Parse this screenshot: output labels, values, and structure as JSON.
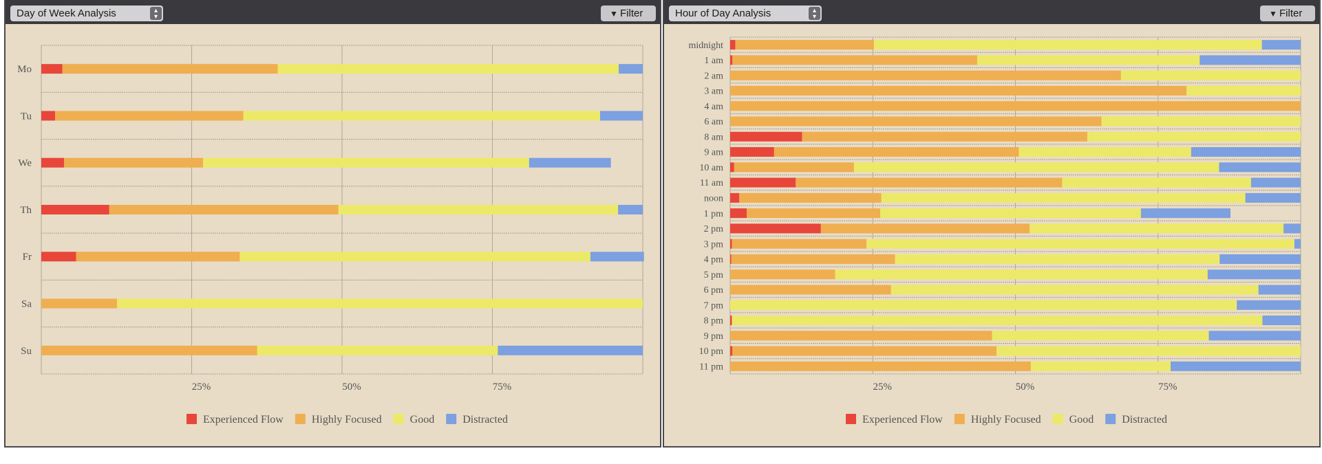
{
  "legend_colors": {
    "Experienced Flow": "#e8463a",
    "Highly Focused": "#efae50",
    "Good": "#ede968",
    "Distracted": "#7ca0e0"
  },
  "left_panel": {
    "select_label": "Day of Week Analysis",
    "select_icon": "updown-chevron-icon",
    "filter_label": "Filter",
    "filter_icon": "funnel-icon"
  },
  "right_panel": {
    "select_label": "Hour of Day Analysis",
    "select_icon": "updown-chevron-icon",
    "filter_label": "Filter",
    "filter_icon": "funnel-icon"
  },
  "chart_data": [
    {
      "type": "bar",
      "orientation": "horizontal",
      "stacked": true,
      "categories": [
        "Mo",
        "Tu",
        "We",
        "Th",
        "Fr",
        "Sa",
        "Su"
      ],
      "x_ticks": [
        "25%",
        "50%",
        "75%"
      ],
      "xlim": [
        0,
        100
      ],
      "grid": true,
      "legend_position": "bottom",
      "series": [
        {
          "name": "Experienced Flow",
          "values": [
            3.5,
            2.3,
            3.8,
            11.3,
            5.8,
            0,
            0
          ]
        },
        {
          "name": "Highly Focused",
          "values": [
            35.8,
            31.3,
            23.1,
            38.1,
            27.2,
            12.6,
            35.9
          ]
        },
        {
          "name": "Good",
          "values": [
            56.7,
            59.3,
            54.2,
            46.5,
            58.3,
            87.4,
            40.0
          ]
        },
        {
          "name": "Distracted",
          "values": [
            4.0,
            7.1,
            13.6,
            4.1,
            8.9,
            0,
            24.1
          ]
        }
      ]
    },
    {
      "type": "bar",
      "orientation": "horizontal",
      "stacked": true,
      "categories": [
        "midnight",
        "1 am",
        "2 am",
        "3 am",
        "4 am",
        "6 am",
        "8 am",
        "9 am",
        "10 am",
        "11 am",
        "noon",
        "1 pm",
        "2 pm",
        "3 pm",
        "4 pm",
        "5 pm",
        "6 pm",
        "7 pm",
        "8 pm",
        "9 pm",
        "10 pm",
        "11 pm"
      ],
      "x_ticks": [
        "25%",
        "50%",
        "75%"
      ],
      "xlim": [
        0,
        100
      ],
      "grid": true,
      "legend_position": "bottom",
      "series": [
        {
          "name": "Experienced Flow",
          "values": [
            0.9,
            0.4,
            0,
            0,
            0,
            0,
            12.6,
            7.7,
            0.7,
            11.5,
            1.6,
            2.9,
            15.9,
            0.3,
            0.2,
            0,
            0,
            0,
            0.3,
            0,
            0.4,
            0
          ]
        },
        {
          "name": "Highly Focused",
          "values": [
            24.3,
            42.9,
            68.5,
            80.0,
            100,
            65.1,
            50.0,
            42.9,
            21.0,
            46.7,
            24.9,
            23.4,
            36.6,
            23.6,
            28.7,
            18.4,
            28.2,
            0,
            0,
            45.9,
            46.3,
            52.7
          ]
        },
        {
          "name": "Good",
          "values": [
            68.0,
            39.0,
            31.5,
            20.0,
            0,
            34.9,
            37.4,
            30.2,
            64.0,
            33.1,
            63.8,
            45.7,
            44.5,
            75.0,
            56.9,
            65.3,
            64.4,
            88.8,
            93.0,
            38.0,
            53.3,
            24.5
          ]
        },
        {
          "name": "Distracted",
          "values": [
            6.8,
            17.7,
            0,
            0,
            0,
            0,
            0,
            19.2,
            14.3,
            8.7,
            9.7,
            15.7,
            3.0,
            1.1,
            14.2,
            16.3,
            7.4,
            11.2,
            6.7,
            16.1,
            0,
            22.8
          ]
        }
      ]
    }
  ]
}
